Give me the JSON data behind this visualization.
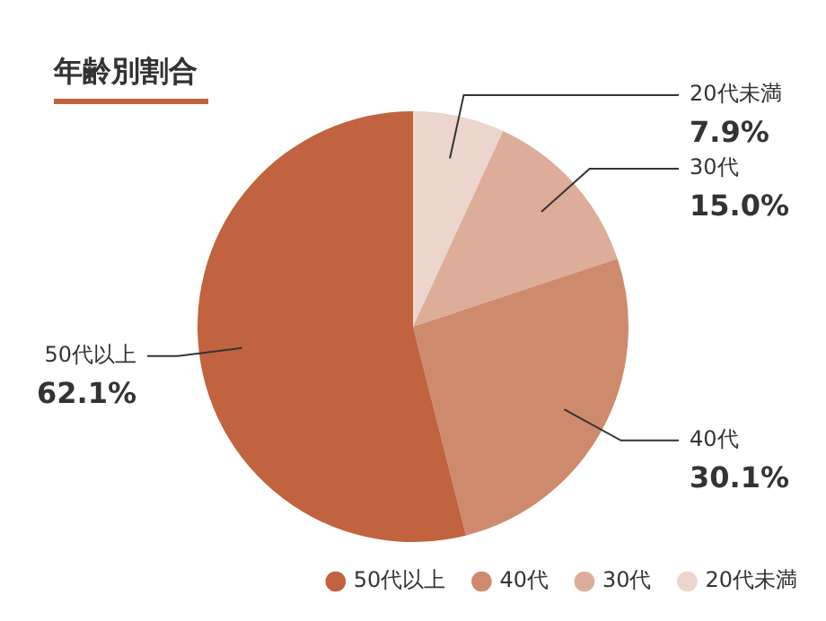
{
  "chart_data": {
    "type": "pie",
    "title": "年齢別割合",
    "categories": [
      "20代未満",
      "30代",
      "40代",
      "50代以上"
    ],
    "values": [
      7.9,
      15.0,
      30.1,
      62.1
    ],
    "value_labels": [
      "7.9%",
      "15.0%",
      "30.1%",
      "62.1%"
    ],
    "colors": [
      "#ebd5cc",
      "#ddad99",
      "#ce8a6c",
      "#c0633e"
    ],
    "legend": "bottom"
  }
}
